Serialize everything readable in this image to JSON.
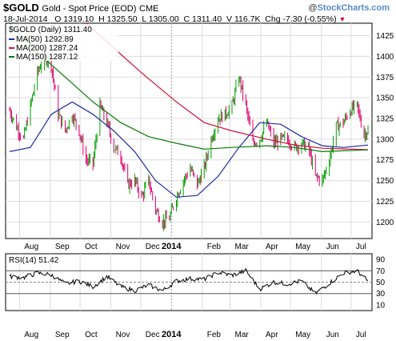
{
  "header": {
    "symbol": "$GOLD",
    "name": "Gold - Spot Price (EOD)",
    "exchange": "CME",
    "brand": "StockCharts.com",
    "brand_prefix": "@",
    "date": "18-Jul-2014",
    "quote": "O 1319.10  H 1325.50  L 1305.00  C 1311.40  V 116.7K  Chg -7.30 (-0.55%)",
    "quote_dir_icon": "down-triangle-icon"
  },
  "chart_data": [
    {
      "type": "line",
      "title": "$GOLD (Daily) 1311.40",
      "ylim": [
        1180,
        1440
      ],
      "yticks": [
        1200,
        1225,
        1250,
        1275,
        1300,
        1325,
        1350,
        1375,
        1400,
        1425
      ],
      "x_tick_labels": [
        "Aug",
        "Sep",
        "Oct",
        "Nov",
        "Dec",
        "2014",
        "Feb",
        "Mar",
        "Apr",
        "May",
        "Jun",
        "Jul"
      ],
      "price_style": "bars",
      "up_color": "#00a000",
      "down_color": "#e0006a",
      "price_series": [
        {
          "x": "2013-07-22",
          "y": 1335
        },
        {
          "x": "2013-07-29",
          "y": 1315
        },
        {
          "x": "2013-08-05",
          "y": 1300
        },
        {
          "x": "2013-08-12",
          "y": 1340
        },
        {
          "x": "2013-08-19",
          "y": 1380
        },
        {
          "x": "2013-08-26",
          "y": 1400
        },
        {
          "x": "2013-09-02",
          "y": 1390
        },
        {
          "x": "2013-09-09",
          "y": 1330
        },
        {
          "x": "2013-09-16",
          "y": 1310
        },
        {
          "x": "2013-09-23",
          "y": 1330
        },
        {
          "x": "2013-09-30",
          "y": 1310
        },
        {
          "x": "2013-10-07",
          "y": 1275
        },
        {
          "x": "2013-10-14",
          "y": 1270
        },
        {
          "x": "2013-10-21",
          "y": 1340
        },
        {
          "x": "2013-10-28",
          "y": 1320
        },
        {
          "x": "2013-11-04",
          "y": 1290
        },
        {
          "x": "2013-11-11",
          "y": 1280
        },
        {
          "x": "2013-11-18",
          "y": 1245
        },
        {
          "x": "2013-11-25",
          "y": 1250
        },
        {
          "x": "2013-12-02",
          "y": 1230
        },
        {
          "x": "2013-12-09",
          "y": 1250
        },
        {
          "x": "2013-12-16",
          "y": 1215
        },
        {
          "x": "2013-12-23",
          "y": 1200
        },
        {
          "x": "2013-12-30",
          "y": 1205
        },
        {
          "x": "2014-01-06",
          "y": 1230
        },
        {
          "x": "2014-01-13",
          "y": 1250
        },
        {
          "x": "2014-01-20",
          "y": 1265
        },
        {
          "x": "2014-01-27",
          "y": 1245
        },
        {
          "x": "2014-02-03",
          "y": 1265
        },
        {
          "x": "2014-02-10",
          "y": 1300
        },
        {
          "x": "2014-02-17",
          "y": 1325
        },
        {
          "x": "2014-02-24",
          "y": 1330
        },
        {
          "x": "2014-03-03",
          "y": 1340
        },
        {
          "x": "2014-03-10",
          "y": 1375
        },
        {
          "x": "2014-03-17",
          "y": 1340
        },
        {
          "x": "2014-03-24",
          "y": 1295
        },
        {
          "x": "2014-03-31",
          "y": 1300
        },
        {
          "x": "2014-04-07",
          "y": 1320
        },
        {
          "x": "2014-04-14",
          "y": 1295
        },
        {
          "x": "2014-04-21",
          "y": 1300
        },
        {
          "x": "2014-04-28",
          "y": 1300
        },
        {
          "x": "2014-05-05",
          "y": 1290
        },
        {
          "x": "2014-05-12",
          "y": 1295
        },
        {
          "x": "2014-05-19",
          "y": 1290
        },
        {
          "x": "2014-05-26",
          "y": 1255
        },
        {
          "x": "2014-06-02",
          "y": 1250
        },
        {
          "x": "2014-06-09",
          "y": 1275
        },
        {
          "x": "2014-06-16",
          "y": 1315
        },
        {
          "x": "2014-06-23",
          "y": 1320
        },
        {
          "x": "2014-06-30",
          "y": 1335
        },
        {
          "x": "2014-07-07",
          "y": 1340
        },
        {
          "x": "2014-07-14",
          "y": 1305
        },
        {
          "x": "2014-07-18",
          "y": 1311.4
        }
      ],
      "series": [
        {
          "name": "MA(50) 1292.89",
          "color": "#1f2aa6",
          "values": [
            {
              "x": "2013-07-22",
              "y": 1285
            },
            {
              "x": "2013-08-12",
              "y": 1290
            },
            {
              "x": "2013-09-02",
              "y": 1330
            },
            {
              "x": "2013-09-23",
              "y": 1345
            },
            {
              "x": "2013-10-14",
              "y": 1330
            },
            {
              "x": "2013-11-04",
              "y": 1310
            },
            {
              "x": "2013-11-25",
              "y": 1285
            },
            {
              "x": "2013-12-16",
              "y": 1250
            },
            {
              "x": "2014-01-06",
              "y": 1230
            },
            {
              "x": "2014-01-27",
              "y": 1232
            },
            {
              "x": "2014-02-17",
              "y": 1255
            },
            {
              "x": "2014-03-10",
              "y": 1290
            },
            {
              "x": "2014-03-31",
              "y": 1320
            },
            {
              "x": "2014-04-21",
              "y": 1318
            },
            {
              "x": "2014-05-12",
              "y": 1303
            },
            {
              "x": "2014-06-02",
              "y": 1292
            },
            {
              "x": "2014-06-23",
              "y": 1290
            },
            {
              "x": "2014-07-18",
              "y": 1292.89
            }
          ]
        },
        {
          "name": "MA(200) 1287.24",
          "color": "#d0103a",
          "values": [
            {
              "x": "2013-10-07",
              "y": 1440
            },
            {
              "x": "2013-11-04",
              "y": 1410
            },
            {
              "x": "2013-12-02",
              "y": 1380
            },
            {
              "x": "2014-01-06",
              "y": 1345
            },
            {
              "x": "2014-02-03",
              "y": 1320
            },
            {
              "x": "2014-03-03",
              "y": 1310
            },
            {
              "x": "2014-04-07",
              "y": 1300
            },
            {
              "x": "2014-05-05",
              "y": 1293
            },
            {
              "x": "2014-06-02",
              "y": 1289
            },
            {
              "x": "2014-07-18",
              "y": 1287.24
            }
          ]
        },
        {
          "name": "MA(150) 1287.12",
          "color": "#0a7a0a",
          "values": [
            {
              "x": "2013-07-22",
              "y": 1440
            },
            {
              "x": "2013-08-19",
              "y": 1405
            },
            {
              "x": "2013-09-16",
              "y": 1375
            },
            {
              "x": "2013-10-14",
              "y": 1345
            },
            {
              "x": "2013-11-11",
              "y": 1320
            },
            {
              "x": "2013-12-09",
              "y": 1303
            },
            {
              "x": "2014-01-06",
              "y": 1295
            },
            {
              "x": "2014-02-03",
              "y": 1288
            },
            {
              "x": "2014-03-03",
              "y": 1290
            },
            {
              "x": "2014-04-07",
              "y": 1292
            },
            {
              "x": "2014-05-05",
              "y": 1290
            },
            {
              "x": "2014-06-02",
              "y": 1285
            },
            {
              "x": "2014-07-18",
              "y": 1287.12
            }
          ]
        }
      ]
    },
    {
      "type": "line",
      "title": "RSI(14) 51.42",
      "ylim": [
        0,
        100
      ],
      "yticks": [
        10,
        30,
        50,
        70,
        90
      ],
      "reference_lines": [
        30,
        50,
        70
      ],
      "x_tick_labels": [
        "Aug",
        "Sep",
        "Oct",
        "Nov",
        "Dec",
        "2014",
        "Feb",
        "Mar",
        "Apr",
        "May",
        "Jun",
        "Jul"
      ],
      "series": [
        {
          "color": "#000000",
          "values": [
            {
              "x": "2013-07-22",
              "y": 60
            },
            {
              "x": "2013-08-05",
              "y": 58
            },
            {
              "x": "2013-08-19",
              "y": 66
            },
            {
              "x": "2013-09-02",
              "y": 63
            },
            {
              "x": "2013-09-16",
              "y": 47
            },
            {
              "x": "2013-09-30",
              "y": 52
            },
            {
              "x": "2013-10-14",
              "y": 42
            },
            {
              "x": "2013-10-28",
              "y": 60
            },
            {
              "x": "2013-11-11",
              "y": 42
            },
            {
              "x": "2013-11-25",
              "y": 35
            },
            {
              "x": "2013-12-09",
              "y": 45
            },
            {
              "x": "2013-12-23",
              "y": 35
            },
            {
              "x": "2014-01-06",
              "y": 52
            },
            {
              "x": "2014-01-20",
              "y": 56
            },
            {
              "x": "2014-02-03",
              "y": 55
            },
            {
              "x": "2014-02-17",
              "y": 67
            },
            {
              "x": "2014-03-03",
              "y": 62
            },
            {
              "x": "2014-03-17",
              "y": 70
            },
            {
              "x": "2014-03-31",
              "y": 38
            },
            {
              "x": "2014-04-14",
              "y": 50
            },
            {
              "x": "2014-04-28",
              "y": 47
            },
            {
              "x": "2014-05-12",
              "y": 52
            },
            {
              "x": "2014-05-26",
              "y": 30
            },
            {
              "x": "2014-06-09",
              "y": 48
            },
            {
              "x": "2014-06-23",
              "y": 66
            },
            {
              "x": "2014-07-07",
              "y": 70
            },
            {
              "x": "2014-07-18",
              "y": 51.42
            }
          ]
        }
      ]
    }
  ]
}
